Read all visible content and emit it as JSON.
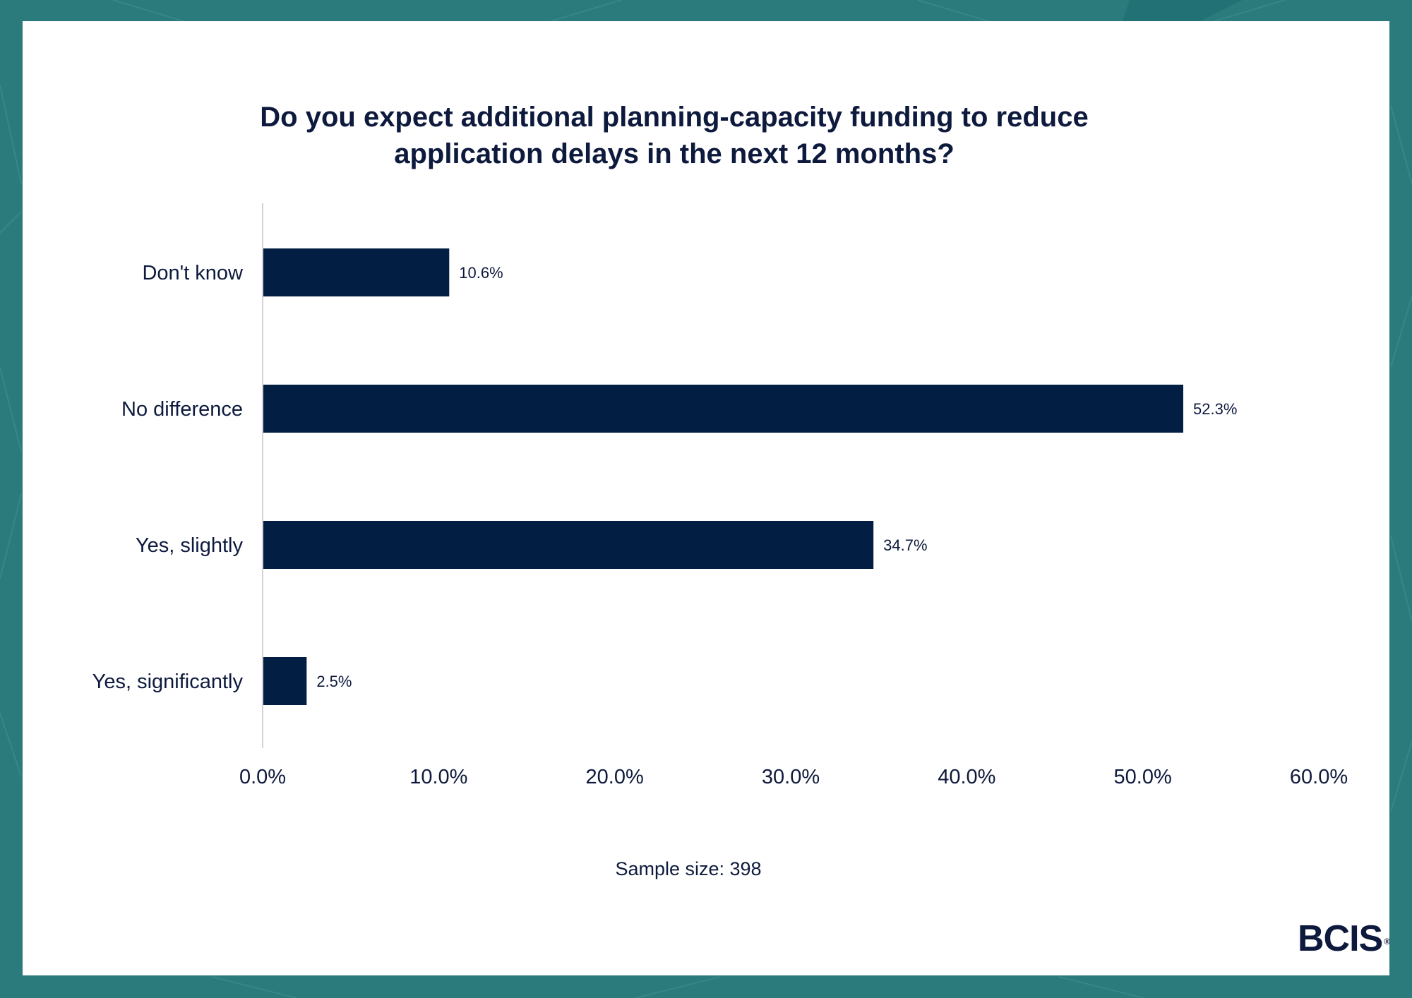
{
  "chart_data": {
    "type": "bar",
    "orientation": "horizontal",
    "title": "Do you expect additional planning-capacity funding to reduce application delays in the next 12 months?",
    "title_lines": [
      "Do you expect additional planning-capacity funding to reduce",
      "application delays in the next 12 months?"
    ],
    "categories": [
      "Don't know",
      "No difference",
      "Yes, slightly",
      "Yes, significantly"
    ],
    "values": [
      10.6,
      52.3,
      34.7,
      2.5
    ],
    "value_labels": [
      "10.6%",
      "52.3%",
      "34.7%",
      "2.5%"
    ],
    "xlim": [
      0,
      60
    ],
    "x_ticks": [
      0,
      10,
      20,
      30,
      40,
      50,
      60
    ],
    "x_tick_labels": [
      "0.0%",
      "10.0%",
      "20.0%",
      "30.0%",
      "40.0%",
      "50.0%",
      "60.0%"
    ],
    "xlabel": "",
    "ylabel": "",
    "grid": false,
    "bar_color": "#031e43"
  },
  "footer": {
    "sample_size": "Sample size: 398"
  },
  "logo": {
    "text": "BCIS",
    "mark": "®"
  },
  "colors": {
    "frame": "#2b7b7d",
    "text": "#0e1a3d",
    "bar": "#031e43"
  }
}
